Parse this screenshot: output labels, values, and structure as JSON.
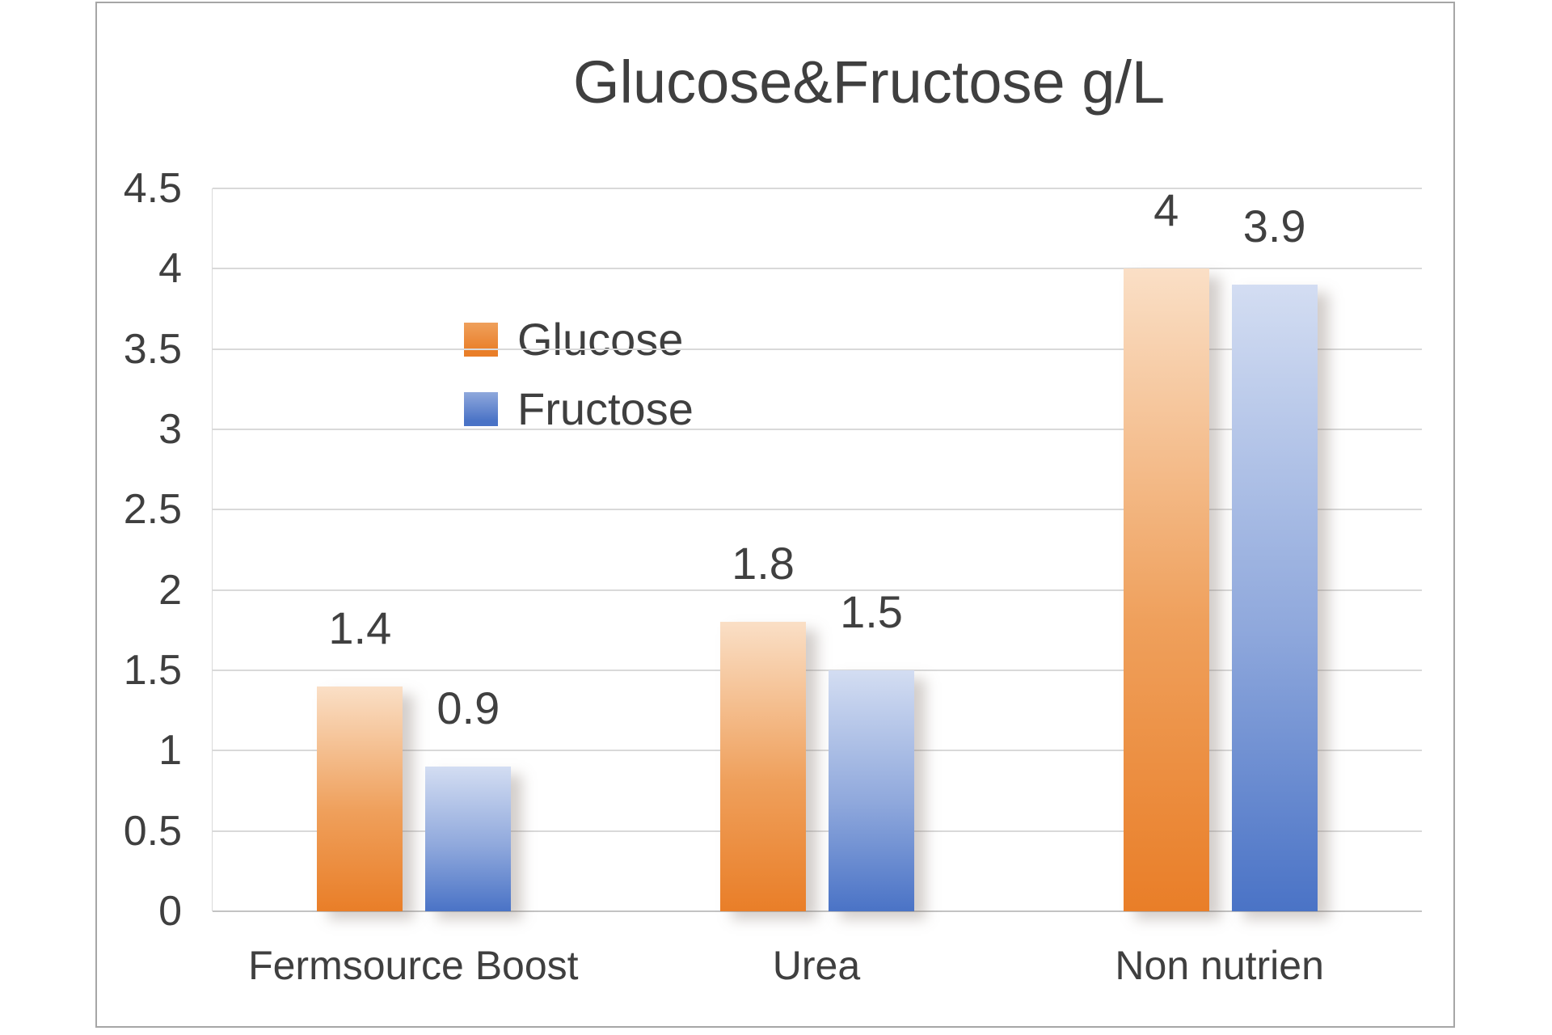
{
  "chart_data": {
    "type": "bar",
    "title": "Glucose&Fructose g/L",
    "categories": [
      "Fermsource Boost",
      "Urea",
      "Non nutrien"
    ],
    "series": [
      {
        "name": "Glucose",
        "values": [
          1.4,
          1.8,
          4
        ],
        "labels": [
          "1.4",
          "1.8",
          "4"
        ],
        "color": "#E97E28",
        "color_mid": "#EFA05C",
        "color_tint": "#FADFC6"
      },
      {
        "name": "Fructose",
        "values": [
          0.9,
          1.5,
          3.9
        ],
        "labels": [
          "0.9",
          "1.5",
          "3.9"
        ],
        "color": "#4A73C6",
        "color_mid": "#8FA8DC",
        "color_tint": "#D3DDF2"
      }
    ],
    "ylim": [
      0,
      4.5
    ],
    "ytick_step": 0.5,
    "yticks": [
      "4.5",
      "4",
      "3.5",
      "3",
      "2.5",
      "2",
      "1.5",
      "1",
      "0.5",
      "0"
    ],
    "grid": true,
    "legend_position": "inside-upper-left",
    "colors": {
      "text": "#3F3F3F",
      "gridline": "#D9D9D9",
      "axis_line": "#C3C3C3",
      "frame_border": "#A6A6A6",
      "background": "#FFFFFF"
    }
  }
}
